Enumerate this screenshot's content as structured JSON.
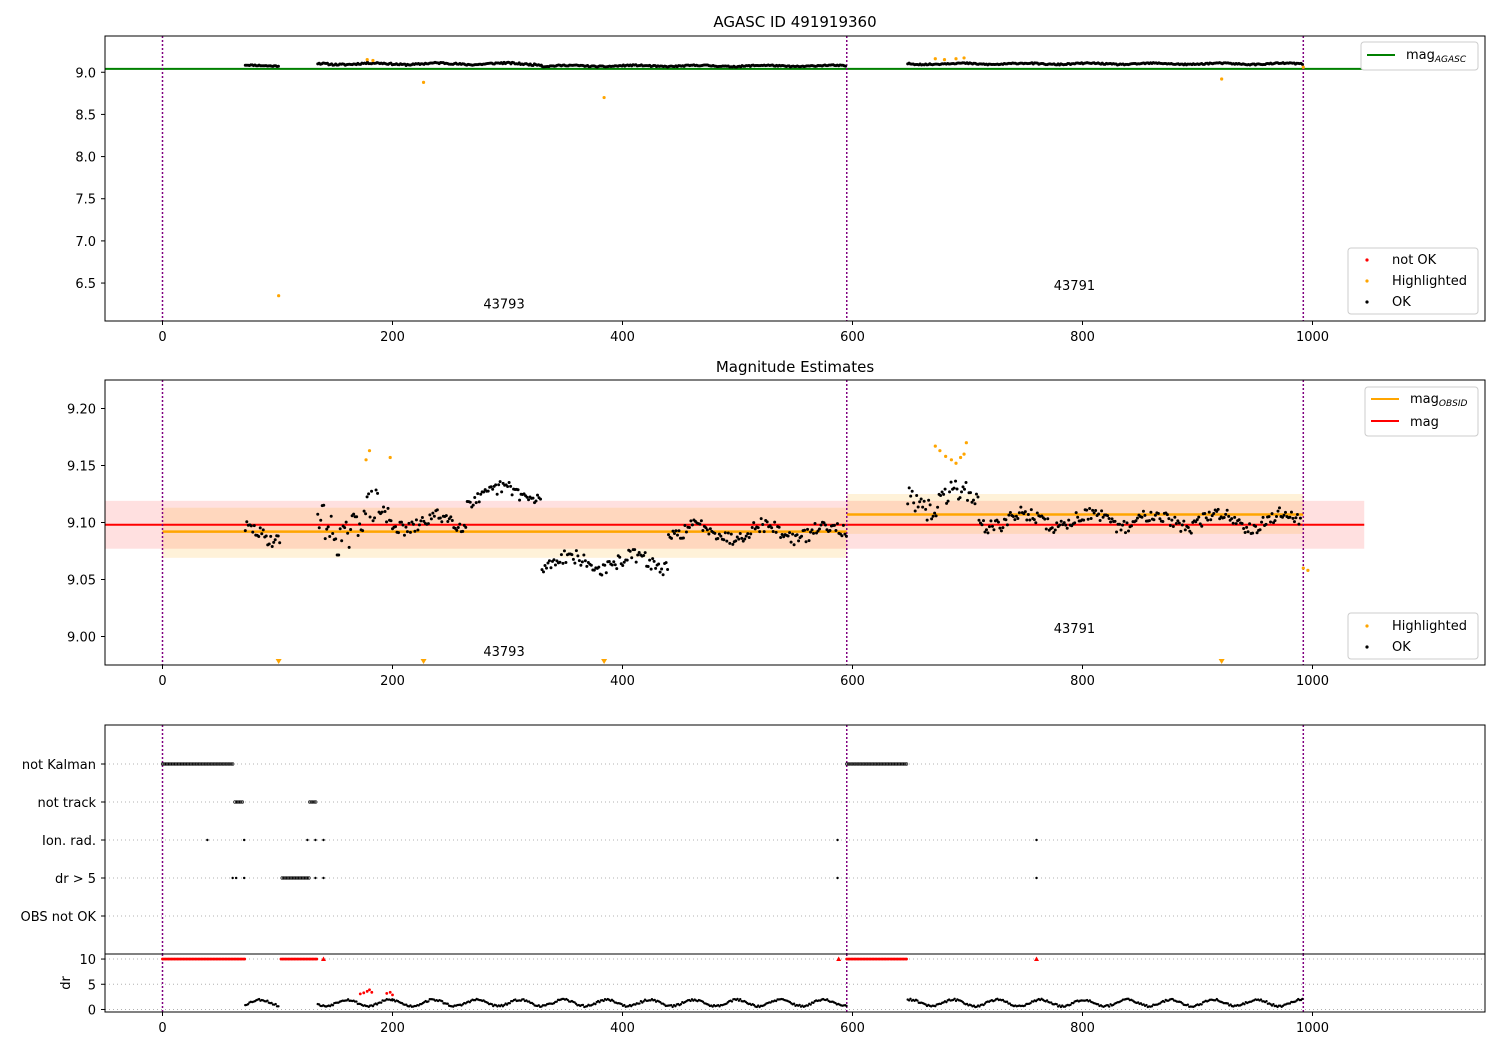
{
  "chart_data": [
    {
      "panel": "agasc",
      "type": "scatter",
      "title": "AGASC ID 491919360",
      "xlabel": "",
      "ylabel": "",
      "xlim": [
        -50,
        1150
      ],
      "ylim": [
        6.05,
        9.43
      ],
      "xticks": [
        0,
        200,
        400,
        600,
        800,
        1000
      ],
      "yticks": [
        6.5,
        7.0,
        7.5,
        8.0,
        8.5,
        9.0
      ],
      "ytick_labels": [
        "6.5",
        "7.0",
        "7.5",
        "8.0",
        "8.5",
        "9.0"
      ],
      "vlines_purple_dotted": [
        0,
        595,
        992
      ],
      "hline": {
        "name": "mag",
        "subscript": "AGASC",
        "value": 9.04,
        "x_range": [
          -50,
          1045
        ],
        "color": "#008000"
      },
      "annotations": [
        {
          "text": "43793",
          "x": 297,
          "y": 6.2
        },
        {
          "text": "43791",
          "x": 793,
          "y": 6.42
        }
      ],
      "ok_segments": [
        {
          "x0": 72,
          "x1": 102,
          "ymid": 9.08,
          "amp": 0.012
        },
        {
          "x0": 135,
          "x1": 330,
          "ymid": 9.1,
          "amp": 0.02
        },
        {
          "x0": 330,
          "x1": 595,
          "ymid": 9.075,
          "amp": 0.015
        },
        {
          "x0": 648,
          "x1": 992,
          "ymid": 9.1,
          "amp": 0.015
        }
      ],
      "highlighted_points": [
        [
          101,
          6.35
        ],
        [
          227,
          8.88
        ],
        [
          384,
          8.7
        ],
        [
          921,
          8.92
        ],
        [
          178,
          9.15
        ],
        [
          183,
          9.14
        ],
        [
          672,
          9.16
        ],
        [
          680,
          9.15
        ],
        [
          690,
          9.16
        ],
        [
          697,
          9.17
        ],
        [
          992,
          9.06
        ]
      ],
      "legend_top": {
        "entries": [
          {
            "label": "mag",
            "subscript": "AGASC",
            "color": "#008000"
          }
        ],
        "placement": "upper right"
      },
      "legend_bottom": {
        "entries": [
          {
            "label": "not OK",
            "color": "#ff0000"
          },
          {
            "label": "Highlighted",
            "color": "#ffa500"
          },
          {
            "label": "OK",
            "color": "#000000"
          }
        ],
        "placement": "lower right"
      }
    },
    {
      "panel": "magnitude",
      "type": "scatter",
      "title": "Magnitude Estimates",
      "xlabel": "",
      "ylabel": "",
      "xlim": [
        -50,
        1150
      ],
      "ylim": [
        8.975,
        9.225
      ],
      "xticks": [
        0,
        200,
        400,
        600,
        800,
        1000
      ],
      "yticks": [
        9.0,
        9.05,
        9.1,
        9.15,
        9.2
      ],
      "ytick_labels": [
        "9.00",
        "9.05",
        "9.10",
        "9.15",
        "9.20"
      ],
      "vlines_purple_dotted": [
        0,
        595,
        992
      ],
      "mag_line": {
        "label": "mag",
        "value": 9.098,
        "band": [
          9.077,
          9.119
        ],
        "x_range": [
          -50,
          1045
        ],
        "color": "#ff0000"
      },
      "obsid_lines": [
        {
          "label": "mag",
          "subscript": "OBSID",
          "value": 9.092,
          "band": [
            9.069,
            9.113
          ],
          "x_range": [
            0,
            595
          ],
          "color": "#ffa500"
        },
        {
          "label": "mag",
          "subscript": "OBSID",
          "value": 9.107,
          "band": [
            9.09,
            9.125
          ],
          "x_range": [
            595,
            992
          ],
          "color": "#ffa500"
        }
      ],
      "annotations": [
        {
          "text": "43793",
          "x": 297,
          "y": 8.983
        },
        {
          "text": "43791",
          "x": 793,
          "y": 9.003
        }
      ],
      "ok_segments": [
        {
          "x0": 72,
          "x1": 102,
          "ymid": 9.09,
          "amp": 0.012
        },
        {
          "x0": 135,
          "x1": 200,
          "ymid": 9.1,
          "amp": 0.03
        },
        {
          "x0": 200,
          "x1": 265,
          "ymid": 9.1,
          "amp": 0.012
        },
        {
          "x0": 265,
          "x1": 330,
          "ymid": 9.125,
          "amp": 0.012
        },
        {
          "x0": 330,
          "x1": 440,
          "ymid": 9.065,
          "amp": 0.012
        },
        {
          "x0": 440,
          "x1": 595,
          "ymid": 9.092,
          "amp": 0.012
        },
        {
          "x0": 648,
          "x1": 710,
          "ymid": 9.12,
          "amp": 0.02
        },
        {
          "x0": 710,
          "x1": 990,
          "ymid": 9.102,
          "amp": 0.012
        }
      ],
      "highlighted_points": [
        [
          177,
          9.155
        ],
        [
          180,
          9.163
        ],
        [
          198,
          9.157
        ],
        [
          672,
          9.167
        ],
        [
          676,
          9.163
        ],
        [
          681,
          9.158
        ],
        [
          686,
          9.155
        ],
        [
          690,
          9.152
        ],
        [
          694,
          9.157
        ],
        [
          697,
          9.16
        ],
        [
          699,
          9.17
        ],
        [
          992,
          9.06
        ],
        [
          996,
          9.058
        ]
      ],
      "offscale_markers_x": [
        101,
        227,
        384,
        921
      ],
      "legend_top": {
        "entries": [
          {
            "label": "mag",
            "subscript": "OBSID",
            "color": "#ffa500"
          },
          {
            "label": "mag",
            "color": "#ff0000"
          }
        ],
        "placement": "upper right"
      },
      "legend_bottom": {
        "entries": [
          {
            "label": "Highlighted",
            "color": "#ffa500"
          },
          {
            "label": "OK",
            "color": "#000000"
          }
        ],
        "placement": "lower right"
      }
    },
    {
      "panel": "flags",
      "type": "scatter",
      "title": "",
      "xlabel": "",
      "ylabel": "",
      "xlim": [
        -50,
        1150
      ],
      "categories": [
        "not Kalman",
        "not track",
        "Ion. rad.",
        "dr > 5",
        "OBS not OK"
      ],
      "vlines_purple_dotted": [
        0,
        595,
        992
      ],
      "flag_ranges": [
        {
          "row": 0,
          "ranges": [
            [
              0,
              62
            ],
            [
              595,
              647
            ]
          ]
        },
        {
          "row": 1,
          "ranges": [
            [
              63,
              70
            ],
            [
              128,
              134
            ]
          ]
        }
      ],
      "flag_points": [
        {
          "row": 2,
          "x": [
            39,
            71,
            126,
            133,
            140,
            587,
            760
          ]
        },
        {
          "row": 3,
          "x": [
            61,
            64,
            71,
            133,
            140,
            587,
            760
          ]
        }
      ],
      "flag_row3_range": [
        104,
        128
      ]
    },
    {
      "panel": "dr",
      "type": "scatter",
      "title": "",
      "xlabel": "",
      "ylabel": "dr",
      "xlim": [
        -50,
        1150
      ],
      "ylim": [
        -0.5,
        11
      ],
      "xticks": [
        0,
        200,
        400,
        600,
        800,
        1000
      ],
      "yticks": [
        0,
        5,
        10
      ],
      "ytick_labels": [
        "0",
        "5",
        "10"
      ],
      "vlines_purple_dotted": [
        0,
        595,
        992
      ],
      "red_clip_value": 10,
      "red_clip_ranges": [
        [
          0,
          72
        ],
        [
          103,
          135
        ],
        [
          595,
          647
        ]
      ],
      "red_clip_points": [
        140,
        588,
        760
      ],
      "red_points": [
        [
          172,
          3.1
        ],
        [
          175,
          3.3
        ],
        [
          178,
          3.6
        ],
        [
          180,
          3.9
        ],
        [
          182,
          3.4
        ],
        [
          195,
          3.2
        ],
        [
          198,
          3.4
        ],
        [
          200,
          2.9
        ]
      ],
      "ok_range_segments": [
        [
          72,
          102
        ],
        [
          135,
          200
        ],
        [
          200,
          595
        ],
        [
          648,
          992
        ]
      ],
      "ok_ymid": 1.3,
      "ok_amp": 0.9
    }
  ]
}
